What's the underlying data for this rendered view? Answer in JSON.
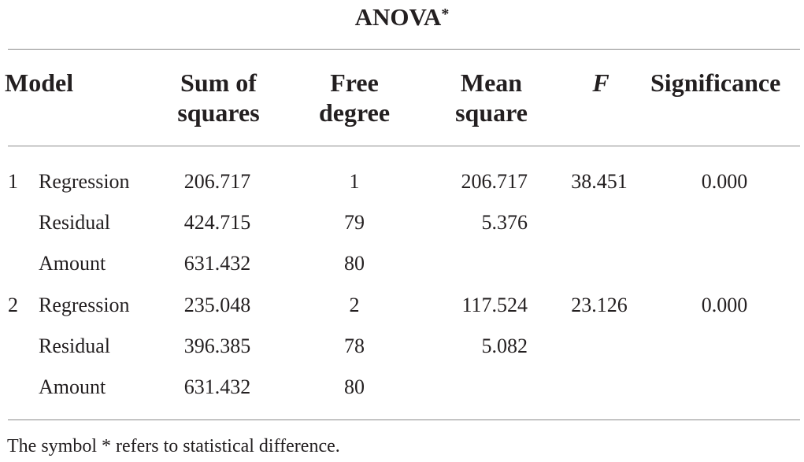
{
  "table": {
    "title": "ANOVA",
    "title_marker": "*",
    "headers": {
      "model": "Model",
      "sum_of_squares_line1": "Sum of",
      "sum_of_squares_line2": "squares",
      "free_degree_line1": "Free",
      "free_degree_line2": "degree",
      "mean_square_line1": "Mean",
      "mean_square_line2": "square",
      "f": "F",
      "significance": "Significance"
    },
    "rows": [
      {
        "model": "1",
        "label": "Regression",
        "sum_of_squares": "206.717",
        "free_degree": "1",
        "mean_square": "206.717",
        "f": "38.451",
        "significance": "0.000"
      },
      {
        "model": "",
        "label": "Residual",
        "sum_of_squares": "424.715",
        "free_degree": "79",
        "mean_square": "5.376",
        "f": "",
        "significance": ""
      },
      {
        "model": "",
        "label": "Amount",
        "sum_of_squares": "631.432",
        "free_degree": "80",
        "mean_square": "",
        "f": "",
        "significance": ""
      },
      {
        "model": "2",
        "label": "Regression",
        "sum_of_squares": "235.048",
        "free_degree": "2",
        "mean_square": "117.524",
        "f": "23.126",
        "significance": "0.000"
      },
      {
        "model": "",
        "label": "Residual",
        "sum_of_squares": "396.385",
        "free_degree": "78",
        "mean_square": "5.082",
        "f": "",
        "significance": ""
      },
      {
        "model": "",
        "label": "Amount",
        "sum_of_squares": "631.432",
        "free_degree": "80",
        "mean_square": "",
        "f": "",
        "significance": ""
      }
    ],
    "footnote": "The symbol * refers to statistical difference."
  }
}
